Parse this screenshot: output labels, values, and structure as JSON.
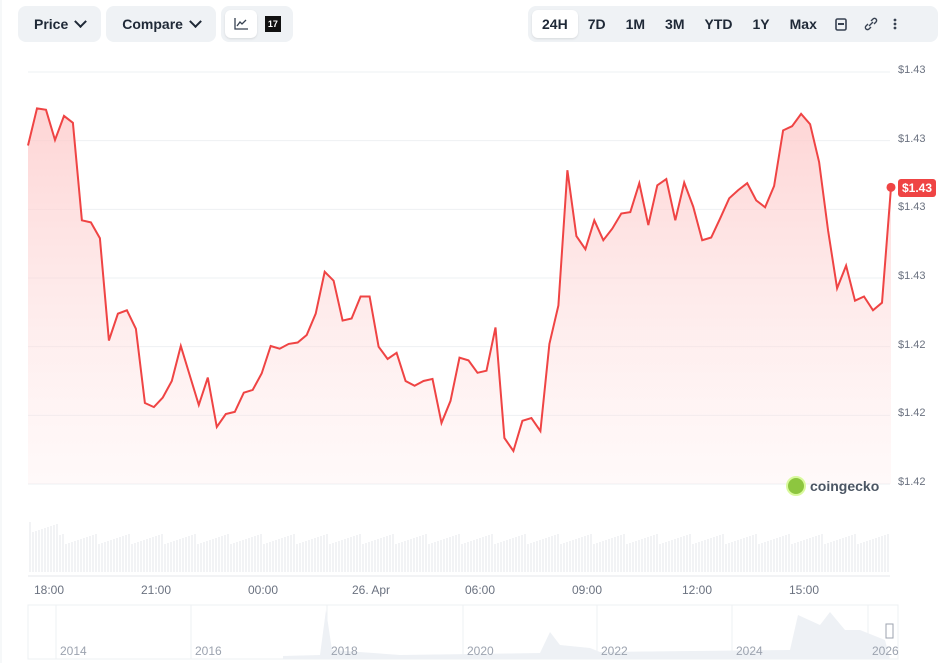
{
  "toolbar": {
    "price_label": "Price",
    "compare_label": "Compare",
    "chart_type_icons": [
      "line-chart-icon",
      "tradingview-icon"
    ],
    "ranges": [
      "24H",
      "7D",
      "1M",
      "3M",
      "YTD",
      "1Y",
      "Max"
    ],
    "active_range": "24H"
  },
  "brand": "coingecko",
  "colors": {
    "line": "#ef4444",
    "fill": "#fde2e2",
    "grid": "#eef0f3",
    "volume": "#e5e7eb"
  },
  "chart_data": {
    "type": "area",
    "ylim": [
      1.422,
      1.428
    ],
    "y_ticks": [
      1.428,
      1.427,
      1.426,
      1.425,
      1.424,
      1.423,
      1.422
    ],
    "y_tick_labels": [
      "$1.43",
      "$1.43",
      "$1.43",
      "$1.43",
      "$1.42",
      "$1.42",
      "$1.42"
    ],
    "x_tick_labels": [
      "18:00",
      "21:00",
      "00:00",
      "26. Apr",
      "06:00",
      "09:00",
      "12:00",
      "15:00"
    ],
    "current_price_label": "$1.43",
    "grid": true,
    "values": [
      1.42693,
      1.42747,
      1.42745,
      1.42701,
      1.42736,
      1.42726,
      1.42584,
      1.42581,
      1.42558,
      1.42409,
      1.42448,
      1.42453,
      1.42426,
      1.42318,
      1.42312,
      1.42326,
      1.4235,
      1.42401,
      1.42358,
      1.42315,
      1.42355,
      1.42283,
      1.42302,
      1.42305,
      1.42333,
      1.42337,
      1.42361,
      1.42401,
      1.42397,
      1.42404,
      1.42406,
      1.42417,
      1.42448,
      1.42509,
      1.42496,
      1.42438,
      1.42441,
      1.42473,
      1.42473,
      1.424,
      1.42382,
      1.42391,
      1.4235,
      1.42343,
      1.4235,
      1.42353,
      1.42289,
      1.42321,
      1.42384,
      1.4238,
      1.42362,
      1.42365,
      1.42428,
      1.42267,
      1.42248,
      1.42292,
      1.42296,
      1.42277,
      1.42404,
      1.4246,
      1.42657,
      1.42561,
      1.42542,
      1.42584,
      1.42555,
      1.42572,
      1.42594,
      1.42596,
      1.42638,
      1.42577,
      1.42635,
      1.42644,
      1.42584,
      1.42639,
      1.42604,
      1.42555,
      1.42559,
      1.42587,
      1.42616,
      1.42628,
      1.42638,
      1.42613,
      1.42603,
      1.42634,
      1.42715,
      1.42721,
      1.42739,
      1.42724,
      1.42669,
      1.42569,
      1.42485,
      1.42518,
      1.42467,
      1.42473,
      1.42453,
      1.42464,
      1.42632
    ]
  },
  "navigator": {
    "year_labels": [
      "2014",
      "2016",
      "2018",
      "2020",
      "2022",
      "2024",
      "2026"
    ]
  }
}
